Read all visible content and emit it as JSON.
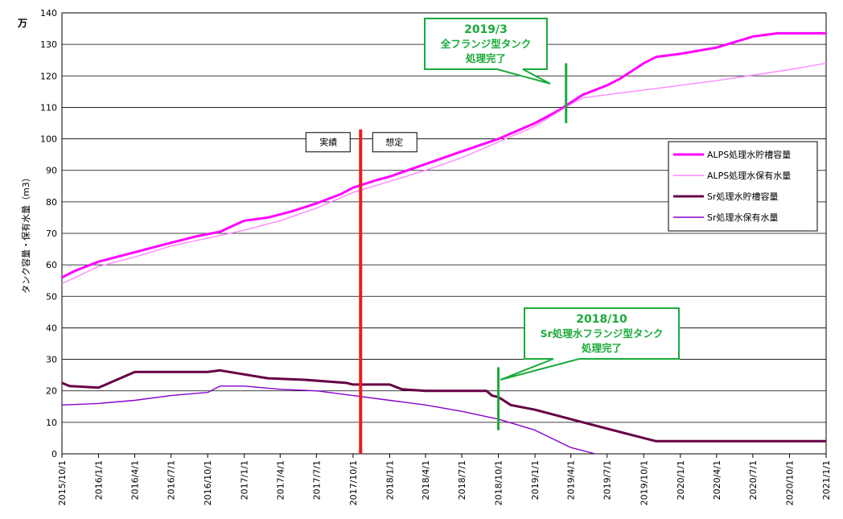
{
  "chart_data": {
    "type": "line",
    "unit": "万",
    "ylabel": "タンク容量・保有水量（m3）",
    "ylim": [
      0,
      140
    ],
    "yticks": [
      0,
      10,
      20,
      30,
      40,
      50,
      60,
      70,
      80,
      90,
      100,
      110,
      120,
      130,
      140
    ],
    "grid": true,
    "legend_position": "right",
    "xticks": [
      "2015/10/1",
      "2016/1/1",
      "2016/4/1",
      "2016/7/1",
      "2016/10/1",
      "2017/1/1",
      "2017/4/1",
      "2017/7/1",
      "2017/10/1",
      "2018/1/1",
      "2018/4/1",
      "2018/7/1",
      "2018/10/1",
      "2019/1/1",
      "2019/4/1",
      "2019/7/1",
      "2019/10/1",
      "2020/1/1",
      "2020/4/1",
      "2020/7/1",
      "2020/10/1",
      "2021/1/1"
    ],
    "series": [
      {
        "name": "ALPS処理水貯槽容量",
        "color": "#ff00ff",
        "style": "step-thick",
        "points": [
          [
            "2015/10/1",
            56
          ],
          [
            "2015/11/1",
            58
          ],
          [
            "2016/1/1",
            61
          ],
          [
            "2016/3/1",
            63
          ],
          [
            "2016/5/1",
            65
          ],
          [
            "2016/7/1",
            67
          ],
          [
            "2016/9/1",
            69
          ],
          [
            "2016/11/1",
            70.5
          ],
          [
            "2017/1/1",
            74
          ],
          [
            "2017/3/1",
            75
          ],
          [
            "2017/5/1",
            77
          ],
          [
            "2017/7/1",
            79.5
          ],
          [
            "2017/9/1",
            82.5
          ],
          [
            "2017/10/1",
            84.5
          ],
          [
            "2017/12/1",
            87
          ],
          [
            "2018/1/1",
            88
          ],
          [
            "2018/4/1",
            92
          ],
          [
            "2018/7/1",
            96
          ],
          [
            "2018/10/1",
            100
          ],
          [
            "2019/1/1",
            105
          ],
          [
            "2019/3/1",
            109
          ],
          [
            "2019/5/1",
            114
          ],
          [
            "2019/7/1",
            117
          ],
          [
            "2019/8/1",
            119
          ],
          [
            "2019/10/1",
            124
          ],
          [
            "2019/11/1",
            126
          ],
          [
            "2020/1/1",
            127
          ],
          [
            "2020/4/1",
            129
          ],
          [
            "2020/7/1",
            132.5
          ],
          [
            "2020/9/1",
            133.5
          ],
          [
            "2021/1/1",
            133.5
          ]
        ]
      },
      {
        "name": "ALPS処理水保有水量",
        "color": "#ff88ff",
        "style": "thin",
        "points": [
          [
            "2015/10/1",
            54
          ],
          [
            "2016/1/1",
            59.5
          ],
          [
            "2016/4/1",
            62.5
          ],
          [
            "2016/7/1",
            66
          ],
          [
            "2016/10/1",
            68.5
          ],
          [
            "2017/1/1",
            71
          ],
          [
            "2017/4/1",
            74
          ],
          [
            "2017/7/1",
            78
          ],
          [
            "2017/10/1",
            83
          ],
          [
            "2018/1/1",
            86.5
          ],
          [
            "2018/4/1",
            90
          ],
          [
            "2018/7/1",
            94
          ],
          [
            "2018/10/1",
            99
          ],
          [
            "2019/1/1",
            104
          ],
          [
            "2019/4/1",
            111
          ],
          [
            "2019/5/1",
            113
          ],
          [
            "2019/10/1",
            115.5
          ],
          [
            "2020/4/1",
            118.5
          ],
          [
            "2020/10/1",
            122
          ],
          [
            "2021/1/1",
            124
          ]
        ]
      },
      {
        "name": "Sr処理水貯槽容量",
        "color": "#660044",
        "style": "step-thick",
        "points": [
          [
            "2015/10/1",
            22.5
          ],
          [
            "2015/10/20",
            21.5
          ],
          [
            "2016/1/1",
            21
          ],
          [
            "2016/4/1",
            26
          ],
          [
            "2016/10/1",
            26
          ],
          [
            "2016/11/1",
            26.5
          ],
          [
            "2017/3/1",
            24
          ],
          [
            "2017/6/1",
            23.5
          ],
          [
            "2017/9/15",
            22.5
          ],
          [
            "2017/10/1",
            22
          ],
          [
            "2018/1/1",
            22
          ],
          [
            "2018/2/1",
            20.5
          ],
          [
            "2018/4/1",
            20
          ],
          [
            "2018/9/1",
            20
          ],
          [
            "2018/9/15",
            18.5
          ],
          [
            "2018/10/1",
            18
          ],
          [
            "2018/11/1",
            15.5
          ],
          [
            "2019/1/1",
            14
          ],
          [
            "2019/4/1",
            11
          ],
          [
            "2019/7/1",
            8
          ],
          [
            "2019/10/1",
            5
          ],
          [
            "2019/11/1",
            4
          ],
          [
            "2021/1/1",
            4
          ]
        ]
      },
      {
        "name": "Sr処理水保有水量",
        "color": "#8800cc",
        "style": "thin",
        "points": [
          [
            "2015/10/1",
            15.5
          ],
          [
            "2016/1/1",
            16
          ],
          [
            "2016/4/1",
            17
          ],
          [
            "2016/7/1",
            18.5
          ],
          [
            "2016/10/1",
            19.5
          ],
          [
            "2016/11/1",
            21.5
          ],
          [
            "2017/1/1",
            21.5
          ],
          [
            "2017/4/1",
            20.5
          ],
          [
            "2017/7/1",
            20
          ],
          [
            "2017/10/1",
            18.5
          ],
          [
            "2018/1/1",
            17
          ],
          [
            "2018/4/1",
            15.5
          ],
          [
            "2018/7/1",
            13.5
          ],
          [
            "2018/10/1",
            11
          ],
          [
            "2019/1/1",
            7.5
          ],
          [
            "2019/4/1",
            2
          ],
          [
            "2019/6/1",
            0
          ]
        ]
      }
    ],
    "divider": {
      "date": "2017/10/20",
      "color": "#ee1c1c",
      "left_label": "実績",
      "right_label": "想定"
    },
    "annotations": [
      {
        "lines": [
          "2019/3",
          "全フランジ型タンク",
          "処理完了"
        ],
        "date": "2019/3/20",
        "value_from": 105,
        "value_to": 124,
        "color": "#1aaa3a"
      },
      {
        "lines": [
          "2018/10",
          "Sr処理水フランジ型タンク",
          "処理完了"
        ],
        "date": "2018/10/1",
        "value_from": 7.5,
        "value_to": 27.5,
        "color": "#1aaa3a"
      }
    ]
  }
}
